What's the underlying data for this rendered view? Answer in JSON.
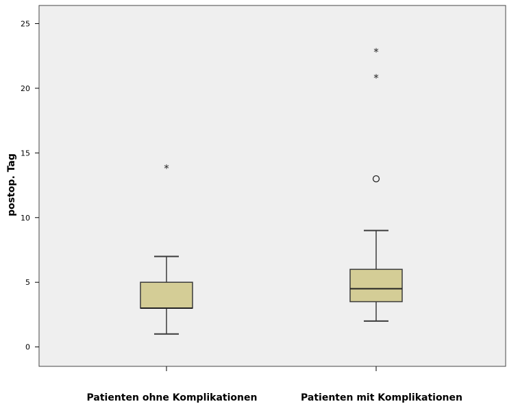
{
  "chart_data": {
    "type": "box",
    "ylabel": "postop. Tag",
    "xlabel": "",
    "ylim": [
      -1.5,
      26.4
    ],
    "yticks": [
      0,
      5,
      10,
      15,
      20,
      25
    ],
    "grid": false,
    "categories": [
      "Patienten ohne Komplikationen",
      "Patienten mit Komplikationen"
    ],
    "boxes": [
      {
        "category": "Patienten ohne Komplikationen",
        "min": 1,
        "q1": 3,
        "median": 3,
        "q3": 5,
        "max": 7,
        "outliers": [],
        "extremes": [
          14
        ]
      },
      {
        "category": "Patienten mit Komplikationen",
        "min": 2,
        "q1": 3.5,
        "median": 4.5,
        "q3": 6,
        "max": 9,
        "outliers": [
          13
        ],
        "extremes": [
          21,
          23
        ]
      }
    ]
  },
  "colors": {
    "plot_background": "#efefef",
    "box_fill": "#d4cd96",
    "box_stroke": "#3a3a3a",
    "axis": "#000000"
  },
  "markers": {
    "extreme_symbol": "*"
  }
}
